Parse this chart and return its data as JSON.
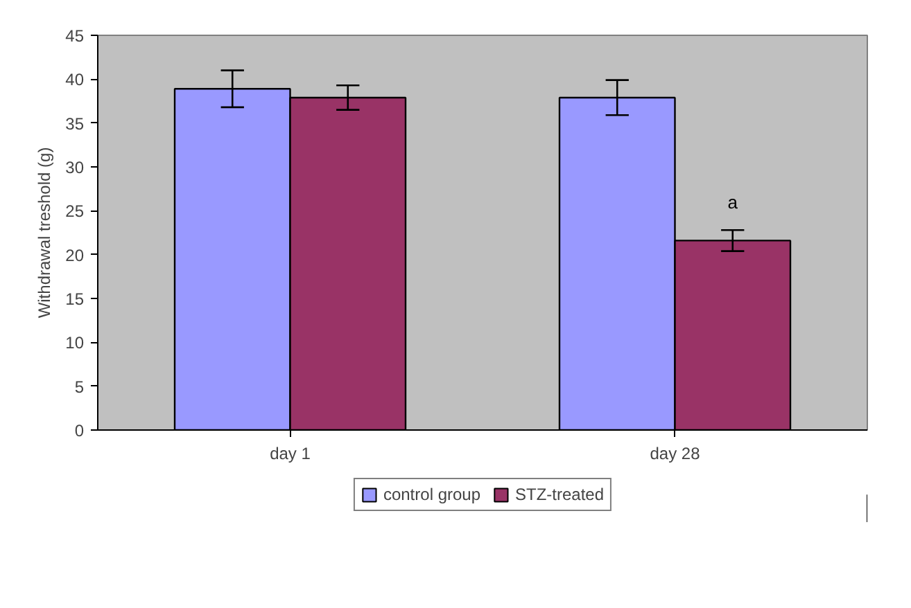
{
  "chart_data": {
    "type": "bar",
    "ylabel": "Withdrawal treshold (g)",
    "categories": [
      "day 1",
      "day 28"
    ],
    "series": [
      {
        "name": "control group",
        "color": "#9999ff",
        "values": [
          38.9,
          37.9
        ],
        "errors": [
          2.1,
          2.0
        ]
      },
      {
        "name": "STZ-treated",
        "color": "#993366",
        "values": [
          37.9,
          21.6
        ],
        "errors": [
          1.4,
          1.2
        ]
      }
    ],
    "ylim": [
      0,
      45
    ],
    "yticks": [
      0,
      5,
      10,
      15,
      20,
      25,
      30,
      35,
      40,
      45
    ],
    "grid": false,
    "legend": "bottom",
    "annotations": [
      {
        "text": "a",
        "x": "day 28",
        "y": 26
      }
    ]
  }
}
